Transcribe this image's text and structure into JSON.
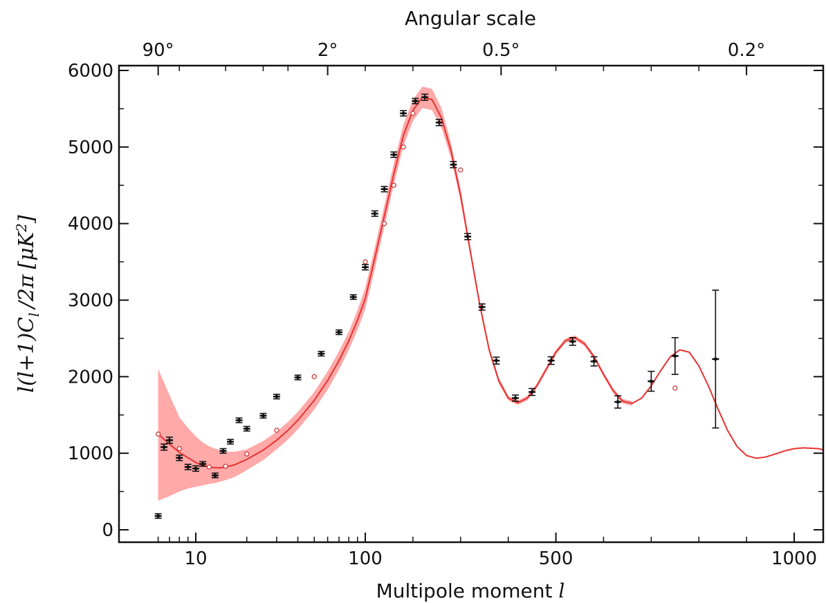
{
  "chart_data": {
    "type": "scatter",
    "title": "",
    "top_axis": {
      "label": "Angular scale",
      "tick_labels": [
        {
          "label": "90°",
          "l": 6
        },
        {
          "label": "2°",
          "l": 60
        },
        {
          "label": "0.5°",
          "l": 385
        },
        {
          "label": "0.2°",
          "l": 900
        }
      ]
    },
    "xlabel": "Multipole moment",
    "xlabel_symbol": "l",
    "ylabel_parts": [
      "l(l+1)C",
      "l",
      "/2π",
      "[μK",
      "2",
      "]"
    ],
    "x_scale": "mixed: log for l<=100 (ticks 10, 100), linear for l>=100 (ticks 100, 500, 1000)",
    "x_ticks": [
      10,
      100,
      500,
      1000
    ],
    "xlim": [
      5.5,
      1200
    ],
    "ylim": [
      0,
      6000
    ],
    "y_ticks": [
      0,
      1000,
      2000,
      3000,
      4000,
      5000,
      6000
    ],
    "grid": false,
    "series": [
      {
        "kind": "model-curve",
        "color": "#e83030",
        "points": [
          [
            6,
            1250
          ],
          [
            7,
            1120
          ],
          [
            8,
            1010
          ],
          [
            9,
            940
          ],
          [
            10,
            880
          ],
          [
            11,
            840
          ],
          [
            12,
            820
          ],
          [
            13,
            810
          ],
          [
            14,
            810
          ],
          [
            15,
            820
          ],
          [
            17,
            850
          ],
          [
            20,
            920
          ],
          [
            25,
            1040
          ],
          [
            30,
            1170
          ],
          [
            35,
            1300
          ],
          [
            40,
            1430
          ],
          [
            50,
            1690
          ],
          [
            60,
            1950
          ],
          [
            70,
            2210
          ],
          [
            80,
            2470
          ],
          [
            90,
            2740
          ],
          [
            100,
            3020
          ],
          [
            120,
            3550
          ],
          [
            140,
            4100
          ],
          [
            160,
            4650
          ],
          [
            180,
            5150
          ],
          [
            200,
            5480
          ],
          [
            220,
            5650
          ],
          [
            240,
            5620
          ],
          [
            260,
            5380
          ],
          [
            280,
            4950
          ],
          [
            300,
            4370
          ],
          [
            320,
            3650
          ],
          [
            340,
            2950
          ],
          [
            360,
            2350
          ],
          [
            380,
            1950
          ],
          [
            400,
            1720
          ],
          [
            420,
            1660
          ],
          [
            440,
            1720
          ],
          [
            460,
            1880
          ],
          [
            480,
            2100
          ],
          [
            500,
            2320
          ],
          [
            520,
            2470
          ],
          [
            540,
            2510
          ],
          [
            560,
            2430
          ],
          [
            580,
            2260
          ],
          [
            600,
            2030
          ],
          [
            620,
            1820
          ],
          [
            640,
            1680
          ],
          [
            660,
            1650
          ],
          [
            680,
            1720
          ],
          [
            700,
            1880
          ],
          [
            720,
            2080
          ],
          [
            740,
            2260
          ],
          [
            760,
            2350
          ],
          [
            780,
            2320
          ],
          [
            800,
            2140
          ],
          [
            820,
            1880
          ],
          [
            840,
            1580
          ],
          [
            860,
            1300
          ],
          [
            880,
            1090
          ],
          [
            900,
            970
          ],
          [
            920,
            935
          ],
          [
            940,
            950
          ],
          [
            960,
            990
          ],
          [
            980,
            1030
          ],
          [
            1000,
            1060
          ],
          [
            1020,
            1070
          ],
          [
            1050,
            1060
          ],
          [
            1100,
            1000
          ],
          [
            1150,
            960
          ],
          [
            1200,
            1020
          ]
        ]
      },
      {
        "kind": "cosmic-variance-band",
        "color": "#ff9a9a",
        "points": [
          [
            6,
            380,
            2100
          ],
          [
            7,
            440,
            1760
          ],
          [
            8,
            500,
            1470
          ],
          [
            9,
            540,
            1330
          ],
          [
            10,
            560,
            1220
          ],
          [
            11,
            580,
            1140
          ],
          [
            12,
            600,
            1090
          ],
          [
            13,
            610,
            1060
          ],
          [
            14,
            630,
            1040
          ],
          [
            15,
            650,
            1020
          ],
          [
            17,
            690,
            1020
          ],
          [
            20,
            780,
            1050
          ],
          [
            25,
            910,
            1160
          ],
          [
            30,
            1050,
            1280
          ],
          [
            35,
            1180,
            1410
          ],
          [
            40,
            1310,
            1540
          ],
          [
            50,
            1570,
            1800
          ],
          [
            60,
            1830,
            2070
          ],
          [
            70,
            2090,
            2330
          ],
          [
            80,
            2350,
            2590
          ],
          [
            90,
            2610,
            2870
          ],
          [
            100,
            2880,
            3160
          ],
          [
            120,
            3410,
            3690
          ],
          [
            140,
            3960,
            4240
          ],
          [
            160,
            4510,
            4790
          ],
          [
            180,
            5010,
            5290
          ],
          [
            200,
            5340,
            5620
          ],
          [
            220,
            5510,
            5790
          ],
          [
            240,
            5480,
            5760
          ],
          [
            260,
            5250,
            5510
          ],
          [
            280,
            4850,
            5050
          ],
          [
            300,
            4290,
            4450
          ],
          [
            320,
            3590,
            3710
          ],
          [
            340,
            2900,
            3000
          ],
          [
            360,
            2310,
            2390
          ],
          [
            380,
            1910,
            1990
          ],
          [
            400,
            1690,
            1750
          ],
          [
            420,
            1630,
            1690
          ],
          [
            440,
            1690,
            1750
          ],
          [
            460,
            1850,
            1910
          ],
          [
            480,
            2070,
            2130
          ],
          [
            500,
            2290,
            2350
          ],
          [
            520,
            2440,
            2500
          ],
          [
            540,
            2480,
            2540
          ],
          [
            560,
            2400,
            2460
          ],
          [
            580,
            2230,
            2290
          ],
          [
            600,
            2000,
            2060
          ],
          [
            620,
            1790,
            1850
          ],
          [
            640,
            1650,
            1710
          ],
          [
            660,
            1620,
            1680
          ]
        ]
      },
      {
        "kind": "measurements",
        "color": "#111111",
        "points": [
          {
            "l": 6,
            "y": 180,
            "err": 30
          },
          {
            "l": 6.5,
            "y": 1080,
            "err": 40
          },
          {
            "l": 7,
            "y": 1170,
            "err": 40
          },
          {
            "l": 8,
            "y": 940,
            "err": 35
          },
          {
            "l": 9,
            "y": 820,
            "err": 35
          },
          {
            "l": 10,
            "y": 800,
            "err": 35
          },
          {
            "l": 11,
            "y": 860,
            "err": 30
          },
          {
            "l": 13,
            "y": 710,
            "err": 30
          },
          {
            "l": 14.5,
            "y": 1030,
            "err": 30
          },
          {
            "l": 16,
            "y": 1150,
            "err": 30
          },
          {
            "l": 18,
            "y": 1430,
            "err": 30
          },
          {
            "l": 20,
            "y": 1320,
            "err": 30
          },
          {
            "l": 25,
            "y": 1490,
            "err": 30
          },
          {
            "l": 30,
            "y": 1740,
            "err": 30
          },
          {
            "l": 40,
            "y": 1990,
            "err": 30
          },
          {
            "l": 55,
            "y": 2300,
            "err": 30
          },
          {
            "l": 70,
            "y": 2580,
            "err": 30
          },
          {
            "l": 85,
            "y": 3040,
            "err": 30
          },
          {
            "l": 100,
            "y": 3430,
            "err": 35
          },
          {
            "l": 120,
            "y": 4130,
            "err": 35
          },
          {
            "l": 140,
            "y": 4450,
            "err": 35
          },
          {
            "l": 160,
            "y": 4900,
            "err": 35
          },
          {
            "l": 180,
            "y": 5440,
            "err": 35
          },
          {
            "l": 205,
            "y": 5600,
            "err": 35
          },
          {
            "l": 225,
            "y": 5650,
            "err": 40
          },
          {
            "l": 255,
            "y": 5320,
            "err": 40
          },
          {
            "l": 285,
            "y": 4770,
            "err": 40
          },
          {
            "l": 315,
            "y": 3830,
            "err": 40
          },
          {
            "l": 345,
            "y": 2910,
            "err": 40
          },
          {
            "l": 375,
            "y": 2210,
            "err": 45
          },
          {
            "l": 415,
            "y": 1720,
            "err": 40
          },
          {
            "l": 450,
            "y": 1800,
            "err": 45
          },
          {
            "l": 490,
            "y": 2210,
            "err": 50
          },
          {
            "l": 535,
            "y": 2460,
            "err": 50
          },
          {
            "l": 580,
            "y": 2200,
            "err": 60
          },
          {
            "l": 630,
            "y": 1670,
            "err": 80
          },
          {
            "l": 700,
            "y": 1940,
            "err": 130
          },
          {
            "l": 750,
            "y": 2270,
            "err": 240
          },
          {
            "l": 835,
            "y": 2230,
            "err": 900
          }
        ]
      },
      {
        "kind": "model-band-points",
        "color": "#cc3a3a",
        "points": [
          [
            6,
            1250
          ],
          [
            8,
            1060
          ],
          [
            12,
            820
          ],
          [
            15,
            830
          ],
          [
            20,
            990
          ],
          [
            30,
            1300
          ],
          [
            50,
            2000
          ],
          [
            100,
            3500
          ],
          [
            140,
            4000
          ],
          [
            160,
            4500
          ],
          [
            180,
            5000
          ],
          [
            200,
            5440
          ],
          [
            300,
            4700
          ],
          [
            750,
            1850
          ]
        ]
      }
    ]
  }
}
